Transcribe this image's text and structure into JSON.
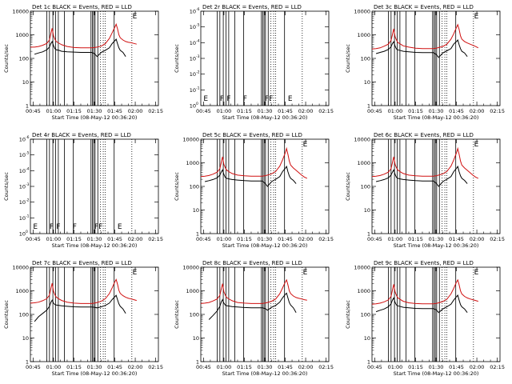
{
  "figure": {
    "xlabel": "Start Time (08-May-12 00:36:20)",
    "ylabel": "Counts/sec",
    "colors": {
      "events": "#000000",
      "lld": "#d01010",
      "axes": "#000000",
      "flags": "#000000"
    },
    "x_range_min": [
      43,
      137
    ],
    "x_tick_labels": [
      "00:45",
      "01:00",
      "01:15",
      "01:30",
      "01:45",
      "02:00",
      "02:15"
    ],
    "x_tick_values_min": [
      45,
      60,
      75,
      90,
      105,
      120,
      135
    ],
    "y_ticks_counts": [
      {
        "value": 1,
        "label": "1"
      },
      {
        "value": 10,
        "label": "10"
      },
      {
        "value": 100,
        "label": "100"
      },
      {
        "value": 1000,
        "label": "1000"
      },
      {
        "value": 10000,
        "label": "10000"
      }
    ],
    "y_ticks_empty": [
      {
        "value": 0,
        "label": "10"
      },
      {
        "value": 1,
        "label": "10"
      },
      {
        "value": 2,
        "label": "10"
      },
      {
        "value": 3,
        "label": "10"
      },
      {
        "value": 4,
        "label": "10"
      },
      {
        "value": 5,
        "label": "10"
      },
      {
        "value": 6,
        "label": "10"
      }
    ],
    "y_ticks_empty_exp": [
      "0",
      "-1",
      "-2",
      "-3",
      "-4",
      "-5",
      "-6"
    ],
    "top_flag": "E",
    "empty_flags": [
      {
        "x": 45,
        "label": "E"
      },
      {
        "x": 57,
        "label": "F"
      },
      {
        "x": 62,
        "label": "F"
      },
      {
        "x": 74,
        "label": "F"
      },
      {
        "x": 90,
        "label": "FF"
      },
      {
        "x": 107,
        "label": "E"
      }
    ],
    "solid_lines_min": [
      55,
      57,
      59.5,
      61.5,
      63.5,
      68,
      74.5,
      87.5,
      88.5,
      89.5,
      90.5,
      92.5,
      104.5
    ],
    "dotted_lines_min": [
      94.5,
      96.5,
      98,
      117.5
    ]
  },
  "chart_data": [
    {
      "type": "line",
      "title": "Det 1c BLACK = Events, RED = LLD",
      "yscale": "log",
      "ylim": [
        1,
        10000
      ],
      "x": [
        43,
        46,
        49,
        52,
        55,
        57,
        58,
        59,
        60,
        61,
        62,
        64,
        66,
        70,
        75,
        80,
        85,
        88,
        90,
        92,
        95,
        98,
        101,
        103,
        105,
        106,
        107,
        108,
        109,
        111,
        113,
        115,
        117,
        119,
        121
      ],
      "series": [
        {
          "name": "LLD",
          "color": "lld",
          "values": [
            300,
            300,
            320,
            360,
            430,
            600,
            1100,
            1900,
            900,
            650,
            520,
            440,
            380,
            320,
            290,
            280,
            280,
            280,
            290,
            300,
            330,
            420,
            700,
            1200,
            2100,
            2800,
            1800,
            1000,
            750,
            600,
            520,
            480,
            460,
            430,
            400
          ]
        },
        {
          "name": "Events",
          "color": "events",
          "values": [
            null,
            150,
            170,
            190,
            230,
            300,
            420,
            520,
            350,
            260,
            230,
            220,
            200,
            190,
            185,
            180,
            180,
            180,
            160,
            120,
            180,
            220,
            280,
            420,
            560,
            650,
            420,
            280,
            220,
            180,
            120,
            null,
            null,
            null,
            null
          ]
        }
      ]
    },
    {
      "type": "line",
      "title": "Det 2r BLACK = Events, RED = LLD",
      "yscale": "log_empty",
      "ylim": [
        0,
        6
      ],
      "x": [],
      "series": []
    },
    {
      "type": "line",
      "title": "Det 3c BLACK = Events, RED = LLD",
      "yscale": "log",
      "ylim": [
        1,
        10000
      ],
      "x": [
        43,
        46,
        49,
        52,
        55,
        57,
        58,
        59,
        60,
        61,
        62,
        64,
        66,
        70,
        75,
        80,
        85,
        88,
        90,
        92,
        95,
        98,
        101,
        103,
        105,
        106,
        107,
        108,
        109,
        111,
        113,
        115,
        117,
        119,
        121
      ],
      "series": [
        {
          "name": "LLD",
          "color": "lld",
          "values": [
            250,
            260,
            280,
            330,
            400,
            580,
            1000,
            1800,
            820,
            600,
            470,
            400,
            340,
            300,
            270,
            260,
            260,
            260,
            270,
            290,
            320,
            400,
            650,
            1100,
            2000,
            2700,
            1700,
            900,
            650,
            520,
            450,
            400,
            360,
            320,
            280
          ]
        },
        {
          "name": "Events",
          "color": "events",
          "values": [
            null,
            160,
            180,
            200,
            240,
            310,
            420,
            510,
            330,
            250,
            230,
            215,
            200,
            190,
            180,
            175,
            175,
            175,
            150,
            110,
            170,
            210,
            260,
            400,
            520,
            600,
            380,
            260,
            200,
            170,
            120,
            null,
            null,
            null,
            null
          ]
        }
      ]
    },
    {
      "type": "line",
      "title": "Det 4r BLACK = Events, RED = LLD",
      "yscale": "log_empty",
      "ylim": [
        0,
        6
      ],
      "x": [],
      "series": []
    },
    {
      "type": "line",
      "title": "Det 5c BLACK = Events, RED = LLD",
      "yscale": "log",
      "ylim": [
        1,
        10000
      ],
      "x": [
        43,
        46,
        49,
        52,
        55,
        57,
        58,
        59,
        60,
        61,
        62,
        64,
        66,
        70,
        75,
        80,
        85,
        88,
        90,
        92,
        95,
        98,
        101,
        103,
        105,
        106,
        107,
        108,
        109,
        111,
        113,
        115,
        117,
        119,
        121
      ],
      "series": [
        {
          "name": "LLD",
          "color": "lld",
          "values": [
            260,
            270,
            290,
            330,
            400,
            560,
            1000,
            1800,
            850,
            620,
            490,
            410,
            350,
            300,
            280,
            270,
            270,
            270,
            280,
            300,
            340,
            430,
            720,
            1300,
            2600,
            4000,
            2300,
            1200,
            800,
            600,
            480,
            380,
            300,
            250,
            220
          ]
        },
        {
          "name": "Events",
          "color": "events",
          "values": [
            null,
            160,
            175,
            195,
            230,
            300,
            400,
            500,
            320,
            240,
            220,
            205,
            195,
            185,
            175,
            170,
            170,
            170,
            140,
            100,
            160,
            200,
            260,
            420,
            580,
            700,
            420,
            280,
            220,
            180,
            130,
            null,
            null,
            null,
            null
          ]
        }
      ]
    },
    {
      "type": "line",
      "title": "Det 6c BLACK = Events, RED = LLD",
      "yscale": "log",
      "ylim": [
        1,
        10000
      ],
      "x": [
        43,
        46,
        49,
        52,
        55,
        57,
        58,
        59,
        60,
        61,
        62,
        64,
        66,
        70,
        75,
        80,
        85,
        88,
        90,
        92,
        95,
        98,
        101,
        103,
        105,
        106,
        107,
        108,
        109,
        111,
        113,
        115,
        117,
        119,
        121
      ],
      "series": [
        {
          "name": "LLD",
          "color": "lld",
          "values": [
            260,
            270,
            290,
            330,
            400,
            560,
            1000,
            1800,
            850,
            620,
            490,
            410,
            350,
            300,
            280,
            270,
            270,
            270,
            280,
            300,
            340,
            430,
            720,
            1300,
            2600,
            4000,
            2300,
            1200,
            800,
            600,
            480,
            380,
            300,
            250,
            220
          ]
        },
        {
          "name": "Events",
          "color": "events",
          "values": [
            null,
            160,
            175,
            195,
            230,
            300,
            400,
            500,
            320,
            240,
            220,
            205,
            195,
            185,
            175,
            170,
            170,
            170,
            140,
            100,
            160,
            200,
            260,
            420,
            580,
            700,
            420,
            280,
            220,
            180,
            130,
            null,
            null,
            null,
            null
          ]
        }
      ]
    },
    {
      "type": "line",
      "title": "Det 7c BLACK = Events, RED = LLD",
      "yscale": "log",
      "ylim": [
        1,
        10000
      ],
      "x": [
        43,
        46,
        49,
        52,
        55,
        57,
        58,
        59,
        60,
        61,
        62,
        64,
        66,
        70,
        75,
        80,
        85,
        88,
        90,
        92,
        95,
        98,
        101,
        103,
        105,
        106,
        107,
        108,
        109,
        111,
        113,
        115,
        117,
        119,
        121
      ],
      "series": [
        {
          "name": "LLD",
          "color": "lld",
          "values": [
            300,
            310,
            330,
            380,
            460,
            650,
            1200,
            2100,
            950,
            680,
            540,
            450,
            390,
            330,
            300,
            290,
            290,
            290,
            300,
            320,
            360,
            460,
            760,
            1300,
            2400,
            3000,
            1900,
            1050,
            780,
            620,
            530,
            480,
            450,
            420,
            390
          ]
        },
        {
          "name": "Events",
          "color": "events",
          "values": [
            null,
            50,
            80,
            110,
            150,
            220,
            320,
            400,
            300,
            260,
            250,
            240,
            230,
            220,
            210,
            205,
            205,
            205,
            200,
            190,
            210,
            240,
            300,
            420,
            560,
            640,
            420,
            280,
            220,
            170,
            110,
            null,
            null,
            null,
            null
          ]
        }
      ]
    },
    {
      "type": "line",
      "title": "Det 8c BLACK = Events, RED = LLD",
      "yscale": "log",
      "ylim": [
        1,
        10000
      ],
      "x": [
        43,
        46,
        49,
        52,
        55,
        57,
        58,
        59,
        60,
        61,
        62,
        64,
        66,
        70,
        75,
        80,
        85,
        88,
        90,
        92,
        95,
        98,
        101,
        103,
        105,
        106,
        107,
        108,
        109,
        111,
        113,
        115,
        117,
        119,
        121
      ],
      "series": [
        {
          "name": "LLD",
          "color": "lld",
          "values": [
            290,
            300,
            320,
            370,
            450,
            640,
            1150,
            2000,
            900,
            660,
            520,
            440,
            380,
            320,
            300,
            290,
            290,
            290,
            300,
            320,
            360,
            450,
            750,
            1300,
            2300,
            2900,
            1800,
            1000,
            760,
            600,
            520,
            480,
            450,
            420,
            400
          ]
        },
        {
          "name": "Events",
          "color": "events",
          "values": [
            null,
            null,
            60,
            90,
            140,
            220,
            330,
            420,
            300,
            250,
            235,
            225,
            215,
            205,
            195,
            190,
            190,
            190,
            180,
            150,
            200,
            240,
            330,
            500,
            700,
            800,
            500,
            320,
            250,
            190,
            120,
            null,
            null,
            null,
            null
          ]
        }
      ]
    },
    {
      "type": "line",
      "title": "Det 9c BLACK = Events, RED = LLD",
      "yscale": "log",
      "ylim": [
        1,
        10000
      ],
      "x": [
        43,
        46,
        49,
        52,
        55,
        57,
        58,
        59,
        60,
        61,
        62,
        64,
        66,
        70,
        75,
        80,
        85,
        88,
        90,
        92,
        95,
        98,
        101,
        103,
        105,
        106,
        107,
        108,
        109,
        111,
        113,
        115,
        117,
        119,
        121
      ],
      "series": [
        {
          "name": "LLD",
          "color": "lld",
          "values": [
            270,
            280,
            300,
            340,
            410,
            580,
            1050,
            1900,
            880,
            640,
            500,
            420,
            360,
            310,
            290,
            280,
            280,
            280,
            290,
            310,
            350,
            440,
            740,
            1250,
            2300,
            2900,
            1800,
            1000,
            740,
            580,
            500,
            450,
            420,
            390,
            360
          ]
        },
        {
          "name": "Events",
          "color": "events",
          "values": [
            null,
            130,
            150,
            170,
            210,
            280,
            400,
            500,
            320,
            250,
            230,
            215,
            200,
            190,
            180,
            175,
            175,
            175,
            160,
            120,
            170,
            210,
            270,
            400,
            560,
            650,
            400,
            260,
            210,
            170,
            120,
            null,
            null,
            null,
            null
          ]
        }
      ]
    }
  ]
}
